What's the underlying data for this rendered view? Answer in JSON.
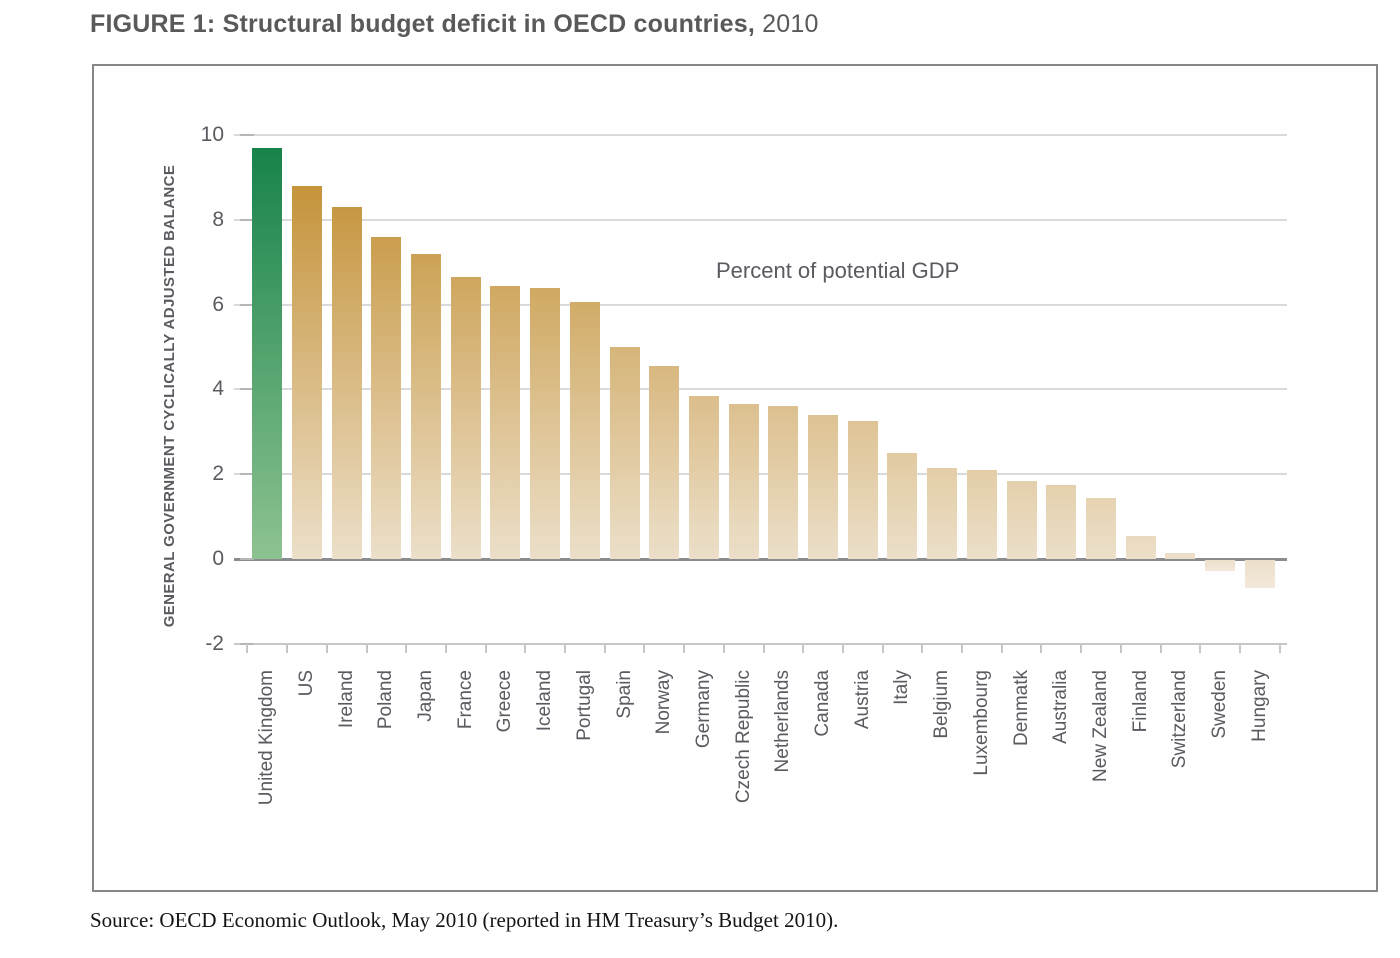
{
  "title": {
    "main": "FIGURE 1: Structural budget deficit in OECD countries,",
    "year": " 2010"
  },
  "source": "Source: OECD Economic Outlook, May 2010 (reported in HM Treasury’s Budget 2010).",
  "chart_data": {
    "type": "bar",
    "title": "FIGURE 1: Structural budget deficit in OECD countries, 2010",
    "annotation": "Percent of potential GDP",
    "ylabel": "GENERAL GOVERNMENT CYCLICALLY ADJUSTED BALANCE",
    "xlabel": "",
    "ylim": [
      -2,
      10
    ],
    "yticks": [
      10,
      8,
      6,
      4,
      2,
      0,
      -2
    ],
    "grid": true,
    "legend": false,
    "categories": [
      "United Kingdom",
      "US",
      "Ireland",
      "Poland",
      "Japan",
      "France",
      "Greece",
      "Iceland",
      "Portugal",
      "Spain",
      "Norway",
      "Germany",
      "Czech Republic",
      "Netherlands",
      "Canada",
      "Austria",
      "Italy",
      "Belgium",
      "Luxembourg",
      "Denmatk",
      "Australia",
      "New Zealand",
      "Finland",
      "Switzerland",
      "Sweden",
      "Hungary"
    ],
    "values": [
      9.7,
      8.8,
      8.3,
      7.6,
      7.2,
      6.65,
      6.45,
      6.4,
      6.05,
      5.0,
      4.55,
      3.85,
      3.65,
      3.6,
      3.4,
      3.25,
      2.5,
      2.15,
      2.1,
      1.85,
      1.75,
      1.45,
      0.55,
      0.15,
      -0.25,
      -0.65
    ],
    "highlight_category": "United Kingdom",
    "colors": {
      "highlight_top": "#17834a",
      "highlight_bottom": "#8dc291",
      "bar_top_at_max": "#c08a28",
      "bar_at_zero": "#ecdfc9",
      "bar_negative_bottom": "#f2e9dc",
      "gridline": "#d9dadc",
      "zero_line": "#8a8c8e",
      "axis_line": "#c6c7c9",
      "text": "#595b60"
    }
  }
}
